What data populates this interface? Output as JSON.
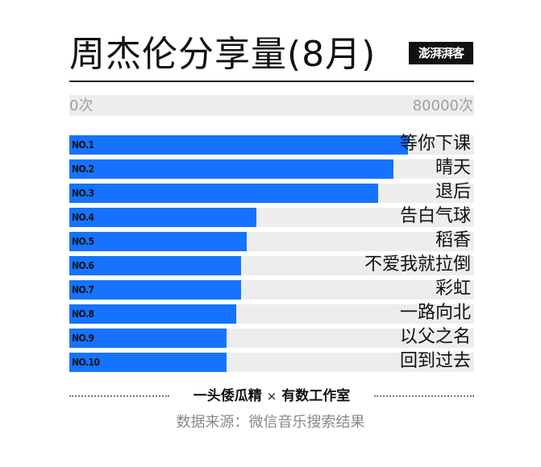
{
  "header": {
    "title": "周杰伦分享量(8月)",
    "logo_text": "澎湃湃客"
  },
  "axis": {
    "min_label": "0次",
    "max_label": "80000次"
  },
  "chart_data": {
    "type": "bar",
    "orientation": "horizontal",
    "title": "周杰伦分享量(8月)",
    "xlim": [
      0,
      80000
    ],
    "categories": [
      "等你下课",
      "晴天",
      "退后",
      "告白气球",
      "稻香",
      "不爱我就拉倒",
      "彩虹",
      "一路向北",
      "以父之名",
      "回到过去"
    ],
    "ranks": [
      "NO.1",
      "NO.2",
      "NO.3",
      "NO.4",
      "NO.5",
      "NO.6",
      "NO.7",
      "NO.8",
      "NO.9",
      "NO.10"
    ],
    "values": [
      67000,
      64000,
      61000,
      37000,
      35000,
      34000,
      34000,
      33000,
      31000,
      31000
    ],
    "bar_color": "#1573ff",
    "track_color": "#ededed"
  },
  "footer": {
    "author": "一头倭瓜精",
    "times": "×",
    "studio": "有数工作室",
    "source": "数据来源：微信音乐搜索结果"
  }
}
